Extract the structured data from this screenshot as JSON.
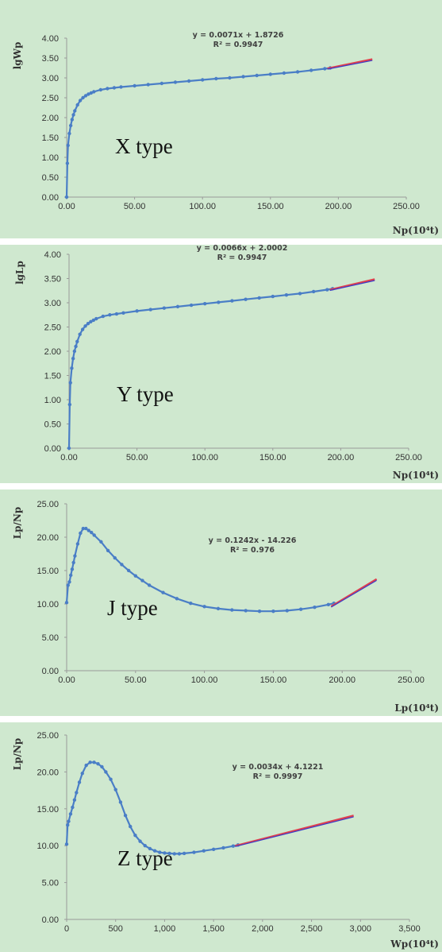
{
  "chart_data": [
    {
      "type": "scatter",
      "panel_label": "X type",
      "ylabel": "lgWp",
      "xlabel": "Np(10⁴t)",
      "xlim": [
        0,
        250
      ],
      "ylim": [
        0,
        4
      ],
      "x_ticks": [
        "0.00",
        "50.00",
        "100.00",
        "150.00",
        "200.00",
        "250.00"
      ],
      "y_ticks": [
        "0.00",
        "0.50",
        "1.00",
        "1.50",
        "2.00",
        "2.50",
        "3.00",
        "3.50",
        "4.00"
      ],
      "series": [
        {
          "color": "#4a7ec6",
          "x": [
            0,
            0.5,
            1,
            2,
            3,
            4,
            5,
            6,
            8,
            10,
            12,
            14,
            16,
            18,
            20,
            25,
            30,
            35,
            40,
            50,
            60,
            70,
            80,
            90,
            100,
            110,
            120,
            130,
            140,
            150,
            160,
            170,
            180,
            190,
            194
          ],
          "y": [
            0,
            0.85,
            1.3,
            1.6,
            1.8,
            1.95,
            2.07,
            2.17,
            2.32,
            2.43,
            2.5,
            2.55,
            2.59,
            2.62,
            2.65,
            2.7,
            2.73,
            2.75,
            2.77,
            2.8,
            2.83,
            2.86,
            2.89,
            2.92,
            2.95,
            2.98,
            3.0,
            3.03,
            3.06,
            3.09,
            3.12,
            3.15,
            3.19,
            3.23,
            3.25
          ]
        }
      ],
      "trendline": {
        "equation": "y = 0.0071x + 1.8726",
        "r2": "R² = 0.9947",
        "slope": 0.0071,
        "intercept": 1.8726,
        "x_range": [
          192,
          225
        ],
        "color": "#e0404e"
      }
    },
    {
      "type": "scatter",
      "panel_label": "Y type",
      "ylabel": "lgLp",
      "xlabel": "Np(10⁴t)",
      "xlim": [
        0,
        250
      ],
      "ylim": [
        0,
        4
      ],
      "x_ticks": [
        "0.00",
        "50.00",
        "100.00",
        "150.00",
        "200.00",
        "250.00"
      ],
      "y_ticks": [
        "0.00",
        "0.50",
        "1.00",
        "1.50",
        "2.00",
        "2.50",
        "3.00",
        "3.50",
        "4.00"
      ],
      "series": [
        {
          "color": "#4a7ec6",
          "x": [
            0,
            0.5,
            1,
            2,
            3,
            4,
            5,
            6,
            8,
            10,
            12,
            14,
            16,
            18,
            20,
            25,
            30,
            35,
            40,
            50,
            60,
            70,
            80,
            90,
            100,
            110,
            120,
            130,
            140,
            150,
            160,
            170,
            180,
            190,
            194
          ],
          "y": [
            0,
            0.9,
            1.35,
            1.65,
            1.85,
            2.0,
            2.1,
            2.2,
            2.35,
            2.45,
            2.52,
            2.57,
            2.61,
            2.64,
            2.67,
            2.72,
            2.75,
            2.77,
            2.79,
            2.83,
            2.86,
            2.89,
            2.92,
            2.95,
            2.98,
            3.01,
            3.04,
            3.07,
            3.1,
            3.13,
            3.16,
            3.19,
            3.23,
            3.27,
            3.29
          ]
        }
      ],
      "trendline": {
        "equation": "y = 0.0066x + 2.0002",
        "r2": "R² = 0.9947",
        "slope": 0.0066,
        "intercept": 2.0002,
        "x_range": [
          192,
          225
        ],
        "color": "#e0404e"
      }
    },
    {
      "type": "scatter",
      "panel_label": "J type",
      "ylabel": "Lp/Np",
      "xlabel": "Lp(10⁴t)",
      "xlim": [
        0,
        250
      ],
      "ylim": [
        0,
        25
      ],
      "x_ticks": [
        "0.00",
        "50.00",
        "100.00",
        "150.00",
        "200.00",
        "250.00"
      ],
      "y_ticks": [
        "0.00",
        "5.00",
        "10.00",
        "15.00",
        "20.00",
        "25.00"
      ],
      "series": [
        {
          "color": "#4a7ec6",
          "x": [
            0,
            1,
            2,
            3,
            4,
            5,
            6,
            8,
            10,
            12,
            14,
            16,
            18,
            20,
            25,
            30,
            35,
            40,
            45,
            50,
            55,
            60,
            70,
            80,
            90,
            100,
            110,
            120,
            130,
            140,
            150,
            160,
            170,
            180,
            190,
            194
          ],
          "y": [
            10.2,
            12.8,
            13.3,
            14.3,
            15.2,
            16.2,
            17.2,
            19.0,
            20.6,
            21.3,
            21.3,
            21.0,
            20.7,
            20.3,
            19.3,
            18.0,
            16.9,
            15.9,
            15.0,
            14.2,
            13.5,
            12.8,
            11.7,
            10.8,
            10.1,
            9.6,
            9.3,
            9.1,
            9.0,
            8.9,
            8.9,
            9.0,
            9.2,
            9.5,
            9.9,
            10.1
          ]
        }
      ],
      "trendline": {
        "equation": "y = 0.1242x - 14.226",
        "r2": "R² = 0.976",
        "slope": 0.1242,
        "intercept": -14.226,
        "x_range": [
          192,
          225
        ],
        "color": "#e0404e"
      }
    },
    {
      "type": "scatter",
      "panel_label": "Z type",
      "ylabel": "Lp/Np",
      "xlabel": "Wp(10⁴t)",
      "xlim": [
        0,
        3500
      ],
      "ylim": [
        0,
        25
      ],
      "x_ticks": [
        "0",
        "500",
        "1,000",
        "1,500",
        "2,000",
        "2,500",
        "3,000",
        "3,500"
      ],
      "y_ticks": [
        "0.00",
        "5.00",
        "10.00",
        "15.00",
        "20.00",
        "25.00"
      ],
      "series": [
        {
          "color": "#4a7ec6",
          "x": [
            0,
            10,
            20,
            40,
            60,
            80,
            100,
            130,
            160,
            200,
            240,
            280,
            320,
            360,
            400,
            450,
            500,
            550,
            600,
            650,
            700,
            750,
            800,
            850,
            900,
            950,
            1000,
            1050,
            1100,
            1150,
            1200,
            1300,
            1400,
            1500,
            1600,
            1700,
            1750
          ],
          "y": [
            10.2,
            12.8,
            13.3,
            14.3,
            15.2,
            16.2,
            17.2,
            18.6,
            19.8,
            20.9,
            21.3,
            21.3,
            21.1,
            20.7,
            20.0,
            19.0,
            17.6,
            15.9,
            14.1,
            12.6,
            11.4,
            10.6,
            10.0,
            9.6,
            9.3,
            9.1,
            9.0,
            8.95,
            8.9,
            8.9,
            8.95,
            9.1,
            9.3,
            9.5,
            9.7,
            9.95,
            10.1
          ]
        }
      ],
      "trendline": {
        "equation": "y = 0.0034x + 4.1221",
        "r2": "R² = 0.9997",
        "slope": 0.0034,
        "intercept": 4.1221,
        "x_range": [
          1720,
          2930
        ],
        "color": "#e0404e"
      }
    }
  ]
}
